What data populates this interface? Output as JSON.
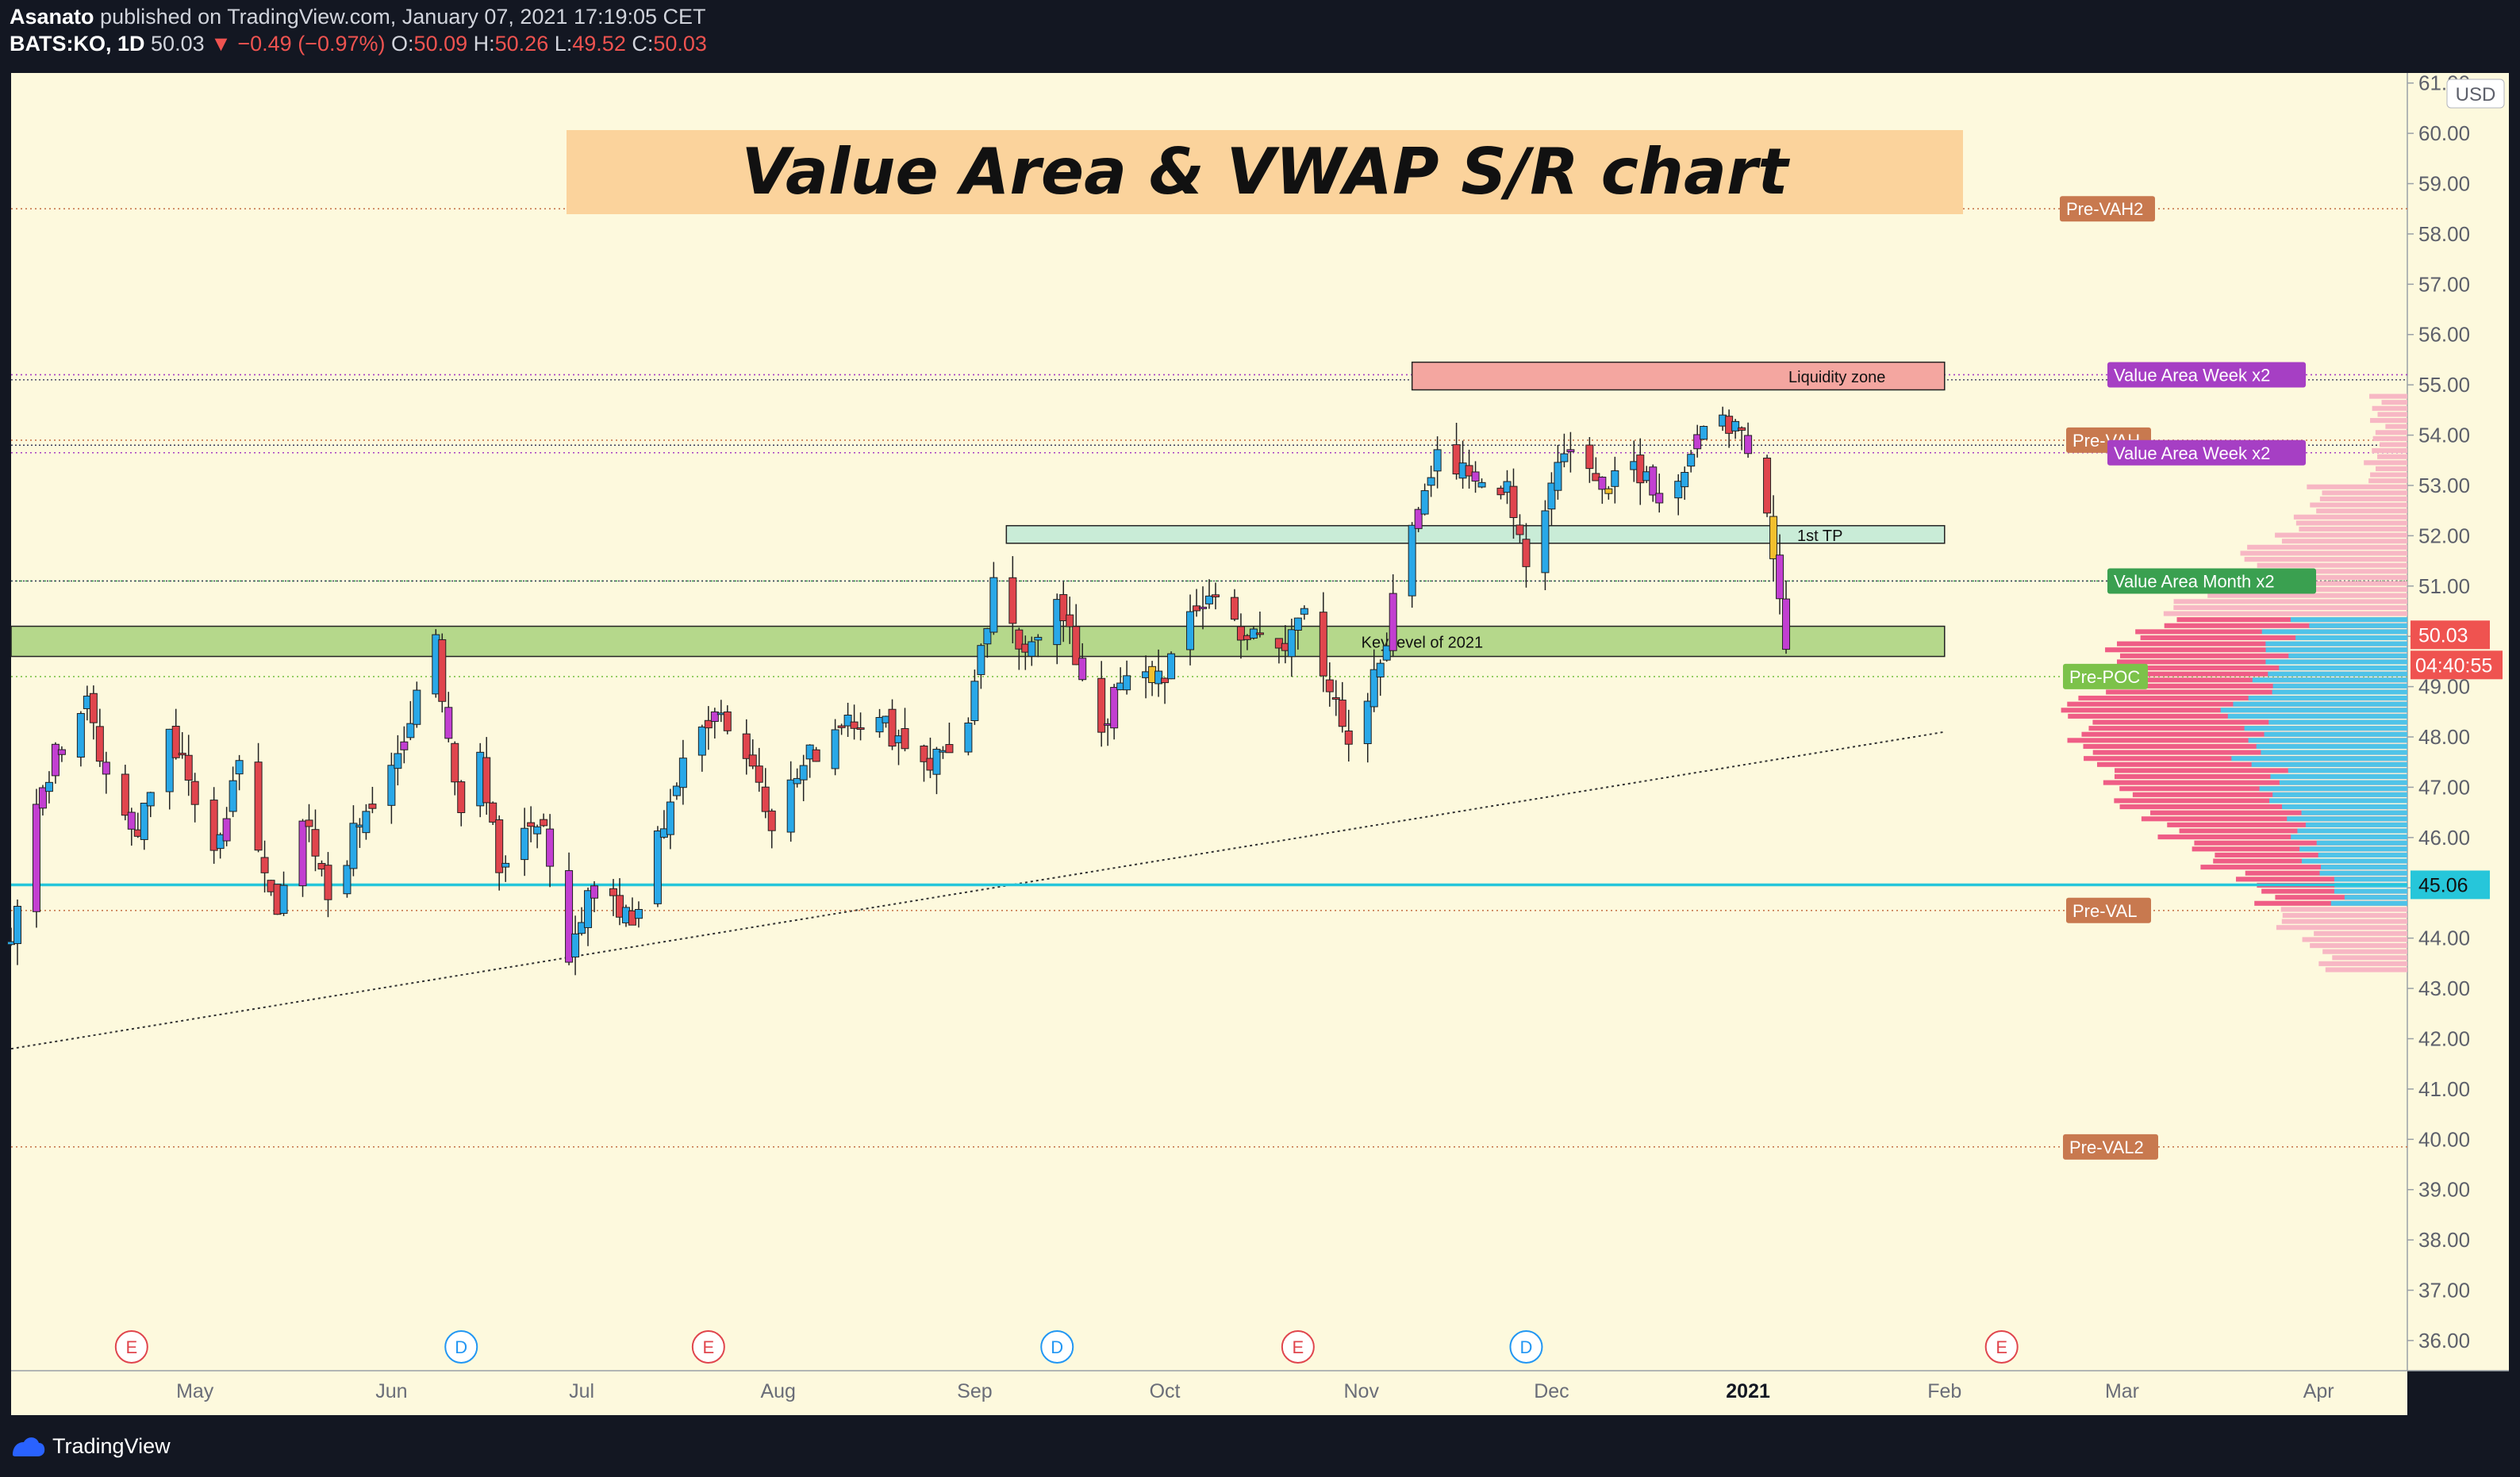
{
  "header": {
    "author": "Asanato",
    "published": "published on TradingView.com, January 07, 2021 17:19:05 CET",
    "symbol": "BATS:KO, 1D",
    "last": "50.03",
    "change": "−0.49 (−0.97%)",
    "o_label": "O:",
    "o": "50.09",
    "h_label": "H:",
    "h": "50.26",
    "l_label": "L:",
    "l": "49.52",
    "c_label": "C:",
    "c": "50.03"
  },
  "footer": {
    "brand": "TradingView"
  },
  "colors": {
    "background": "#fdf9dd",
    "up": "#29a8e8",
    "down": "#e0454d",
    "purple": "#c23fd1",
    "yellow": "#f2c02d",
    "vwap_line": "#26c6da",
    "price_label": "#ef5350"
  },
  "chart_data": {
    "type": "candlestick",
    "title": "Value Area & VWAP S/R chart",
    "currency": "USD",
    "y_ticks": [
      "36.00",
      "37.00",
      "38.00",
      "39.00",
      "40.00",
      "41.00",
      "42.00",
      "43.00",
      "44.00",
      "45.00",
      "46.00",
      "47.00",
      "48.00",
      "49.00",
      "50.00",
      "51.00",
      "52.00",
      "53.00",
      "54.00",
      "55.00",
      "56.00",
      "57.00",
      "58.00",
      "59.00",
      "60.00",
      "61.00"
    ],
    "ylim": [
      35.4,
      61.2
    ],
    "x_labels": [
      {
        "label": "May",
        "date": "2020-05-01"
      },
      {
        "label": "Jun",
        "date": "2020-06-01"
      },
      {
        "label": "Jul",
        "date": "2020-07-01"
      },
      {
        "label": "Aug",
        "date": "2020-08-01"
      },
      {
        "label": "Sep",
        "date": "2020-09-01"
      },
      {
        "label": "Oct",
        "date": "2020-10-01"
      },
      {
        "label": "Nov",
        "date": "2020-11-01"
      },
      {
        "label": "Dec",
        "date": "2020-12-01"
      },
      {
        "label": "2021",
        "date": "2021-01-01"
      },
      {
        "label": "Feb",
        "date": "2021-02-01"
      },
      {
        "label": "Mar",
        "date": "2021-03-01"
      },
      {
        "label": "Apr",
        "date": "2021-04-01"
      }
    ],
    "xlim": [
      "2020-04-02",
      "2021-04-15"
    ],
    "price_anchors": [
      [
        "2020-04-02",
        43.8
      ],
      [
        "2020-04-06",
        46.8
      ],
      [
        "2020-04-14",
        49.0
      ],
      [
        "2020-04-17",
        47.2
      ],
      [
        "2020-04-22",
        46.0
      ],
      [
        "2020-04-27",
        48.2
      ],
      [
        "2020-05-04",
        45.5
      ],
      [
        "2020-05-08",
        47.3
      ],
      [
        "2020-05-14",
        44.3
      ],
      [
        "2020-05-18",
        46.3
      ],
      [
        "2020-05-22",
        44.8
      ],
      [
        "2020-05-26",
        46.0
      ],
      [
        "2020-06-02",
        47.5
      ],
      [
        "2020-06-08",
        49.9
      ],
      [
        "2020-06-12",
        46.2
      ],
      [
        "2020-06-15",
        47.6
      ],
      [
        "2020-06-18",
        45.5
      ],
      [
        "2020-06-24",
        46.5
      ],
      [
        "2020-06-29",
        43.8
      ],
      [
        "2020-07-03",
        45.2
      ],
      [
        "2020-07-09",
        44.2
      ],
      [
        "2020-07-15",
        46.8
      ],
      [
        "2020-07-22",
        48.7
      ],
      [
        "2020-07-29",
        47.2
      ],
      [
        "2020-07-31",
        46.4
      ],
      [
        "2020-08-06",
        47.6
      ],
      [
        "2020-08-12",
        48.5
      ],
      [
        "2020-08-18",
        48.2
      ],
      [
        "2020-08-25",
        47.5
      ],
      [
        "2020-08-31",
        48.2
      ],
      [
        "2020-09-04",
        50.9
      ],
      [
        "2020-09-08",
        49.8
      ],
      [
        "2020-09-14",
        50.6
      ],
      [
        "2020-09-21",
        48.2
      ],
      [
        "2020-09-24",
        49.0
      ],
      [
        "2020-10-01",
        49.3
      ],
      [
        "2020-10-08",
        50.9
      ],
      [
        "2020-10-14",
        50.0
      ],
      [
        "2020-10-20",
        49.7
      ],
      [
        "2020-10-23",
        50.8
      ],
      [
        "2020-10-30",
        47.6
      ],
      [
        "2020-11-04",
        49.5
      ],
      [
        "2020-11-09",
        52.3
      ],
      [
        "2020-11-13",
        53.8
      ],
      [
        "2020-11-18",
        53.0
      ],
      [
        "2020-11-24",
        53.1
      ],
      [
        "2020-11-27",
        51.5
      ],
      [
        "2020-12-03",
        53.8
      ],
      [
        "2020-12-08",
        53.1
      ],
      [
        "2020-12-14",
        53.5
      ],
      [
        "2020-12-18",
        52.9
      ],
      [
        "2020-12-22",
        53.3
      ],
      [
        "2020-12-28",
        54.6
      ],
      [
        "2020-12-31",
        53.8
      ],
      [
        "2021-01-04",
        52.3
      ],
      [
        "2021-01-05",
        51.5
      ],
      [
        "2021-01-06",
        50.5
      ],
      [
        "2021-01-07",
        50.03
      ]
    ],
    "last_price": "50.03",
    "countdown": "04:40:55",
    "vwap_price": "45.06",
    "vwap_level": 45.06,
    "trendline": {
      "from": [
        "2020-04-02",
        41.8
      ],
      "to": [
        "2021-02-01",
        48.1
      ]
    },
    "zones": [
      {
        "label": "Liquidity zone",
        "from": "2020-11-09",
        "to": "2021-02-01",
        "low": 54.9,
        "high": 55.45,
        "color": "#f4a6a0"
      },
      {
        "label": "1st TP",
        "from": "2020-09-06",
        "to": "2021-02-01",
        "low": 51.85,
        "high": 52.2,
        "color": "#c9ecd7"
      },
      {
        "label": "Key level of 2021",
        "from": "2020-04-02",
        "to": "2021-02-01",
        "low": 49.6,
        "high": 50.2,
        "color": "#b5d88b"
      }
    ],
    "levels": [
      {
        "label": "Pre-VAH2",
        "price": 58.5,
        "color": "#c8794f"
      },
      {
        "label": "Value Area Week x2",
        "price": 55.2,
        "color": "#a63fc4"
      },
      {
        "label": "Pre-VAH",
        "price": 53.9,
        "color": "#c8794f"
      },
      {
        "label": "Value Area Week x2",
        "price": 53.65,
        "color": "#a63fc4"
      },
      {
        "label": "Value Area Month x2",
        "price": 51.1,
        "color": "#3aa050"
      },
      {
        "label": "Pre-POC",
        "price": 49.2,
        "color": "#7cc24a"
      },
      {
        "label": "Pre-VAL",
        "price": 44.55,
        "color": "#c8794f"
      },
      {
        "label": "Pre-VAL2",
        "price": 39.85,
        "color": "#c8794f"
      }
    ],
    "events": [
      {
        "letter": "E",
        "date": "2020-04-21"
      },
      {
        "letter": "D",
        "date": "2020-06-12"
      },
      {
        "letter": "E",
        "date": "2020-07-21"
      },
      {
        "letter": "D",
        "date": "2020-09-14"
      },
      {
        "letter": "E",
        "date": "2020-10-22"
      },
      {
        "letter": "D",
        "date": "2020-11-27"
      },
      {
        "letter": "E",
        "date": "2021-02-10"
      }
    ],
    "volume_profile": {
      "from": 43.3,
      "to": 54.8
    }
  }
}
